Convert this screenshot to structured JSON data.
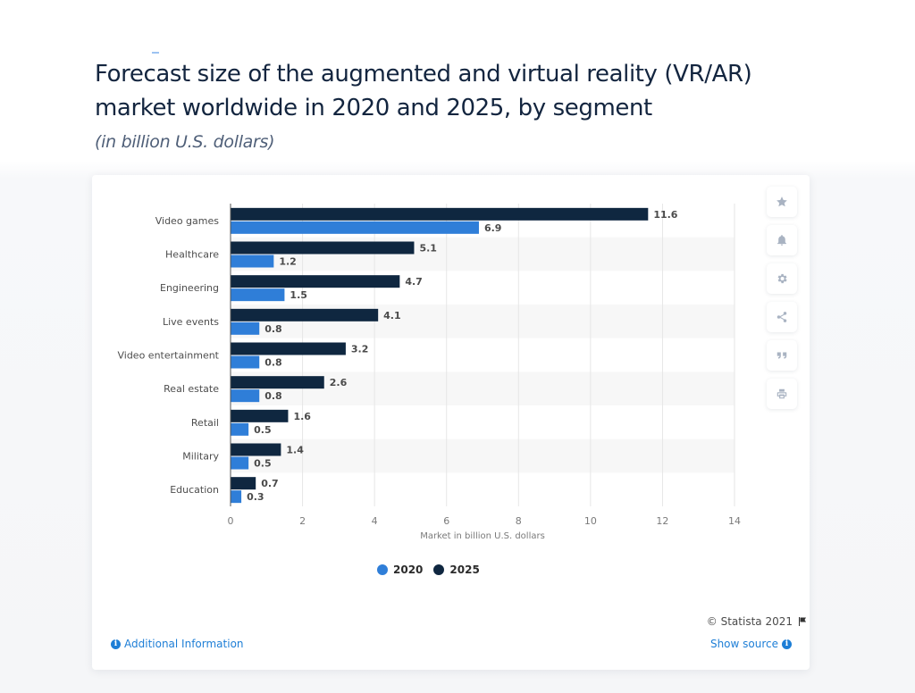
{
  "header": {
    "title": "Forecast size of the augmented and virtual reality (VR/AR) market worldwide in 2020 and 2025, by segment",
    "subtitle": "(in billion U.S. dollars)"
  },
  "colors": {
    "series_2020": "#2f7ed8",
    "series_2025": "#0f2740",
    "link": "#1d7ed6",
    "band": "#f7f7f7",
    "grid": "#e6e6e6"
  },
  "chart_data": {
    "type": "bar",
    "orientation": "horizontal",
    "title": "Forecast size of the augmented and virtual reality (VR/AR) market worldwide in 2020 and 2025, by segment",
    "subtitle": "(in billion U.S. dollars)",
    "categories": [
      "Video games",
      "Healthcare",
      "Engineering",
      "Live events",
      "Video entertainment",
      "Real estate",
      "Retail",
      "Military",
      "Education"
    ],
    "series": [
      {
        "name": "2025",
        "color": "#0f2740",
        "values": [
          11.6,
          5.1,
          4.7,
          4.1,
          3.2,
          2.6,
          1.6,
          1.4,
          0.7
        ]
      },
      {
        "name": "2020",
        "color": "#2f7ed8",
        "values": [
          6.9,
          1.2,
          1.5,
          0.8,
          0.8,
          0.8,
          0.5,
          0.5,
          0.3
        ]
      }
    ],
    "xlabel": "Market in billion U.S. dollars",
    "ylabel": "",
    "xlim": [
      0,
      14
    ],
    "xticks": [
      0,
      2,
      4,
      6,
      8,
      10,
      12,
      14
    ],
    "grid": true,
    "alternating_bands": true,
    "legend": {
      "position": "bottom-center",
      "entries": [
        "2020",
        "2025"
      ]
    }
  },
  "legend": {
    "items": [
      {
        "label": "2020",
        "color": "#2f7ed8"
      },
      {
        "label": "2025",
        "color": "#0f2740"
      }
    ]
  },
  "toolbar": {
    "buttons": [
      {
        "name": "favorite",
        "icon": "star-icon"
      },
      {
        "name": "notify",
        "icon": "bell-icon"
      },
      {
        "name": "settings",
        "icon": "gear-icon"
      },
      {
        "name": "share",
        "icon": "share-icon"
      },
      {
        "name": "cite",
        "icon": "quote-icon"
      },
      {
        "name": "print",
        "icon": "print-icon"
      }
    ]
  },
  "footer": {
    "copyright": "© Statista 2021",
    "additional_info": "Additional Information",
    "show_source": "Show source",
    "info_glyph": "i"
  }
}
